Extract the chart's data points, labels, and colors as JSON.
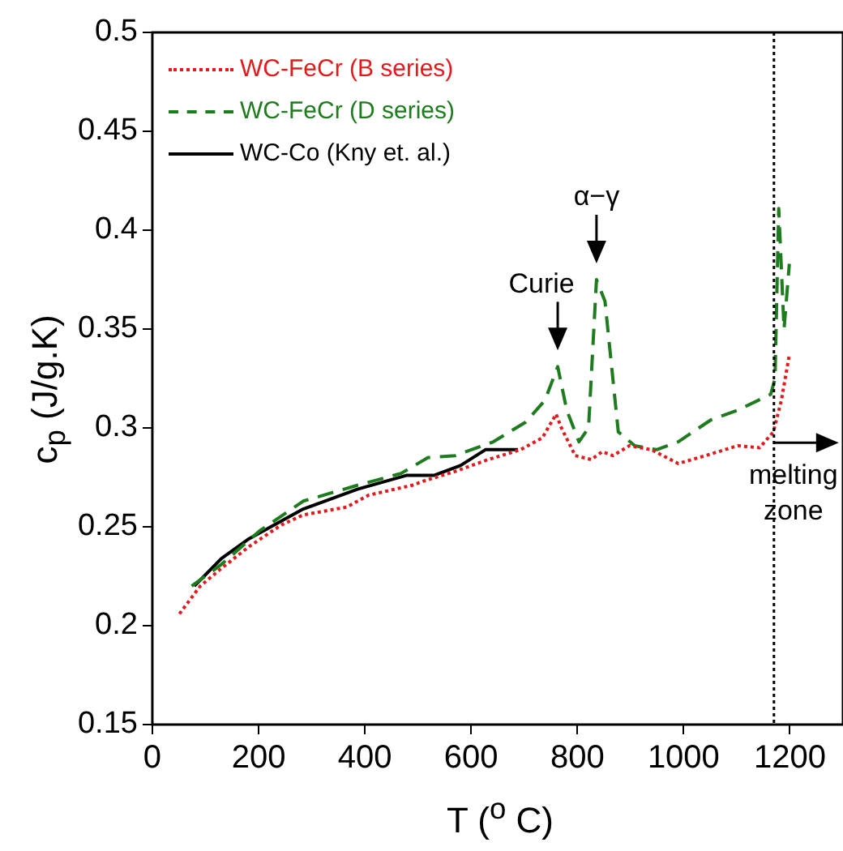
{
  "chart_data": {
    "type": "line",
    "xlabel": "T ($^{o}$ C)",
    "ylabel": "c$_{p}$ (J/g.K)",
    "xlim": [
      0,
      1300
    ],
    "xticks": [
      0,
      200,
      400,
      600,
      800,
      1000,
      1200
    ],
    "ylim": [
      0.15,
      0.5
    ],
    "yticks": [
      {
        "value": 0.15,
        "label": "0.15"
      },
      {
        "value": 0.2,
        "label": "0.2"
      },
      {
        "value": 0.25,
        "label": "0.25"
      },
      {
        "value": 0.3,
        "label": "0.3"
      },
      {
        "value": 0.35,
        "label": "0.35"
      },
      {
        "value": 0.4,
        "label": "0.4"
      },
      {
        "value": 0.45,
        "label": "0.45"
      },
      {
        "value": 0.5,
        "label": "0.5"
      }
    ],
    "grid": false,
    "legend": "top left",
    "marker": "none",
    "series": [
      {
        "name": "WC-FeCr (B series)",
        "color": "#e31a1c",
        "line_style": "dotted",
        "x": [
          51,
          90,
          130,
          182,
          243,
          284,
          366,
          407,
          489,
          509,
          570,
          632,
          693,
          734,
          760,
          770,
          796,
          826,
          847,
          867,
          898,
          939,
          990,
          1041,
          1102,
          1143,
          1169,
          1184,
          1199
        ],
        "values": [
          0.206,
          0.22,
          0.229,
          0.24,
          0.251,
          0.256,
          0.26,
          0.266,
          0.271,
          0.273,
          0.278,
          0.284,
          0.289,
          0.295,
          0.307,
          0.3,
          0.286,
          0.284,
          0.288,
          0.286,
          0.291,
          0.289,
          0.282,
          0.286,
          0.291,
          0.29,
          0.298,
          0.314,
          0.337
        ]
      },
      {
        "name": "WC-FeCr (D series)",
        "color": "#1e7b1e",
        "line_style": "dashed",
        "x": [
          74,
          130,
          202,
          284,
          386,
          468,
          519,
          570,
          642,
          703,
          739,
          763,
          780,
          803,
          821,
          836,
          852,
          877,
          908,
          949,
          990,
          1051,
          1102,
          1164,
          1172,
          1179,
          1189,
          1199
        ],
        "values": [
          0.22,
          0.231,
          0.248,
          0.263,
          0.271,
          0.277,
          0.285,
          0.286,
          0.293,
          0.303,
          0.314,
          0.331,
          0.309,
          0.293,
          0.3,
          0.375,
          0.364,
          0.298,
          0.291,
          0.289,
          0.293,
          0.304,
          0.309,
          0.317,
          0.325,
          0.411,
          0.35,
          0.383
        ]
      },
      {
        "name": "WC-Co (Kny et. al.)",
        "color": "#000000",
        "line_style": "solid",
        "x": [
          79,
          130,
          182,
          284,
          386,
          478,
          530,
          580,
          627,
          688
        ],
        "values": [
          0.22,
          0.234,
          0.244,
          0.259,
          0.269,
          0.276,
          0.276,
          0.281,
          0.289,
          0.289
        ]
      }
    ],
    "ref_lines": [
      {
        "axis": "x",
        "value": 1170,
        "color": "#000000",
        "line_style": "dotted"
      }
    ],
    "annotations": [
      {
        "text": "Curie",
        "x": 763,
        "y": 0.331
      },
      {
        "text": "α−γ",
        "x": 836,
        "y": 0.375
      },
      {
        "text": "melting zone",
        "x": 1170,
        "y": 0.2925
      }
    ]
  }
}
